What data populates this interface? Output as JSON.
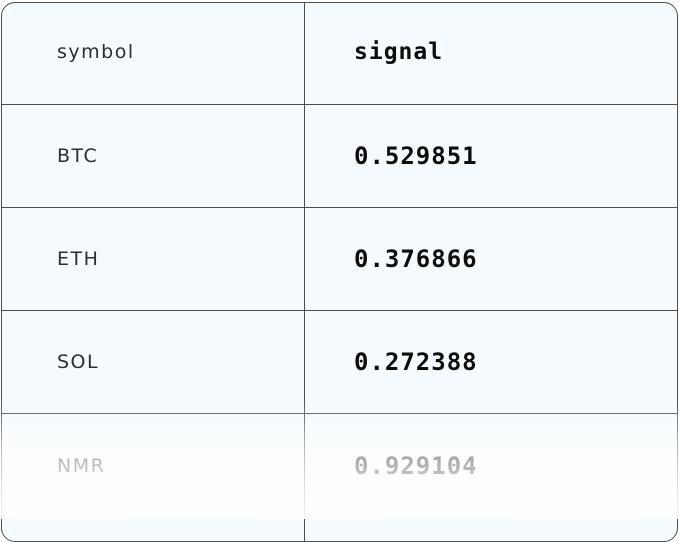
{
  "table": {
    "headers": {
      "symbol": "symbol",
      "signal": "signal"
    },
    "rows": [
      {
        "symbol": "BTC",
        "signal": "0.529851"
      },
      {
        "symbol": "ETH",
        "signal": "0.376866"
      },
      {
        "symbol": "SOL",
        "signal": "0.272388"
      },
      {
        "symbol": "NMR",
        "signal": "0.929104"
      }
    ]
  }
}
